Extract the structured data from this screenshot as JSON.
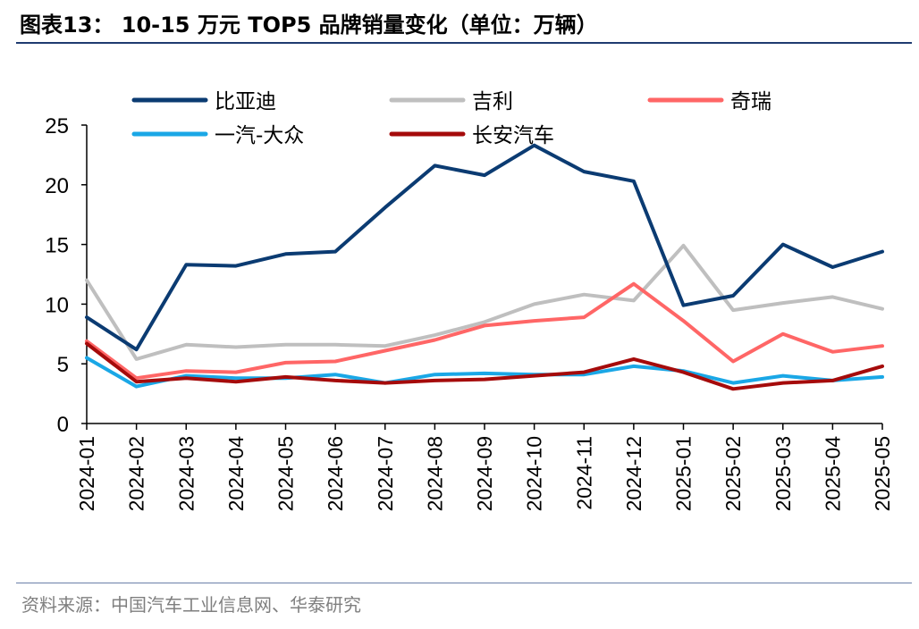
{
  "header": {
    "title": "图表13： 10-15 万元 TOP5 品牌销量变化（单位：万辆）"
  },
  "footer": {
    "source": "资料来源：中国汽车工业信息网、华泰研究"
  },
  "chart_data": {
    "type": "line",
    "title": "",
    "xlabel": "",
    "ylabel": "",
    "ylim": [
      0,
      25
    ],
    "yticks": [
      0,
      5,
      10,
      15,
      20,
      25
    ],
    "grid": false,
    "legend_position": "top",
    "x": [
      "2024-01",
      "2024-02",
      "2024-03",
      "2024-04",
      "2024-05",
      "2024-06",
      "2024-07",
      "2024-08",
      "2024-09",
      "2024-10",
      "2024-11",
      "2024-12",
      "2025-01",
      "2025-02",
      "2025-03",
      "2025-04",
      "2025-05"
    ],
    "series": [
      {
        "name": "比亚迪",
        "color": "#0b3b72",
        "values": [
          8.9,
          6.2,
          13.3,
          13.2,
          14.2,
          14.4,
          18.1,
          21.6,
          20.8,
          23.3,
          21.1,
          20.3,
          9.9,
          10.7,
          15.0,
          13.1,
          14.4
        ]
      },
      {
        "name": "吉利",
        "color": "#bfbfbf",
        "values": [
          12.0,
          5.4,
          6.6,
          6.4,
          6.6,
          6.6,
          6.5,
          7.4,
          8.5,
          10.0,
          10.8,
          10.3,
          14.9,
          9.5,
          10.1,
          10.6,
          9.6
        ]
      },
      {
        "name": "奇瑞",
        "color": "#ff6666",
        "values": [
          6.9,
          3.8,
          4.4,
          4.3,
          5.1,
          5.2,
          6.1,
          7.0,
          8.2,
          8.6,
          8.9,
          11.7,
          8.6,
          5.2,
          7.5,
          6.0,
          6.5
        ]
      },
      {
        "name": "一汽-大众",
        "color": "#1aa7e6",
        "values": [
          5.5,
          3.1,
          4.0,
          3.8,
          3.8,
          4.1,
          3.4,
          4.1,
          4.2,
          4.1,
          4.1,
          4.8,
          4.4,
          3.4,
          4.0,
          3.6,
          3.9
        ]
      },
      {
        "name": "长安汽车",
        "color": "#a50b0b",
        "values": [
          6.7,
          3.5,
          3.8,
          3.5,
          3.9,
          3.6,
          3.4,
          3.6,
          3.7,
          4.0,
          4.3,
          5.4,
          4.3,
          2.9,
          3.4,
          3.6,
          4.8
        ]
      }
    ]
  }
}
